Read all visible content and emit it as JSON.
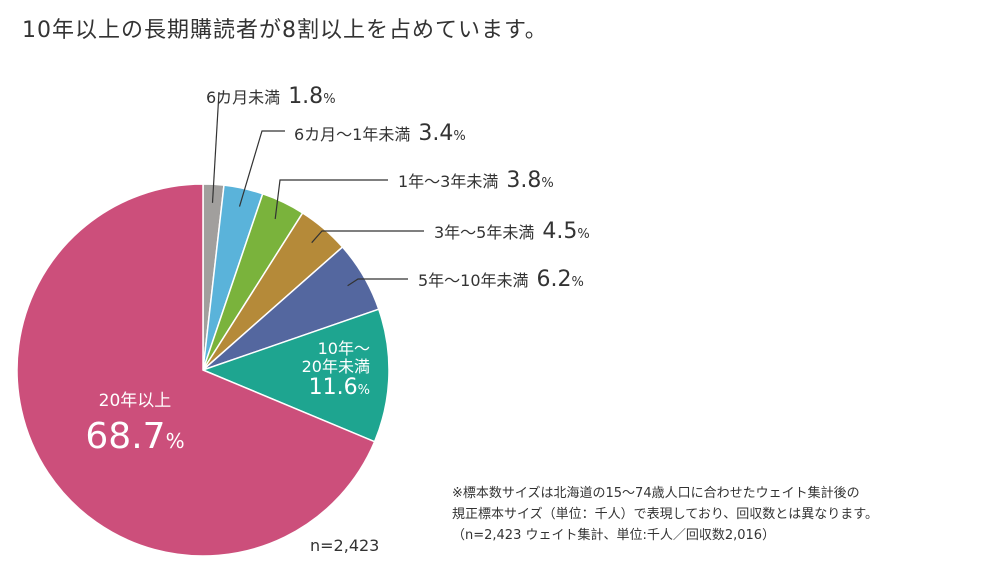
{
  "title": "10年以上の長期購読者が8割以上を占めています。",
  "chart_data": {
    "type": "pie",
    "start_angle_deg": 0,
    "direction": "clockwise",
    "unit": "%",
    "slices": [
      {
        "label": "6カ月未満",
        "value": 1.8,
        "value_text": "1.8",
        "color": "#a19f9d"
      },
      {
        "label": "6カ月〜1年未満",
        "value": 3.4,
        "value_text": "3.4",
        "color": "#5ab3da"
      },
      {
        "label": "1年〜3年未満",
        "value": 3.8,
        "value_text": "3.8",
        "color": "#7ab33c"
      },
      {
        "label": "3年〜5年未満",
        "value": 4.5,
        "value_text": "4.5",
        "color": "#b58a39"
      },
      {
        "label": "5年〜10年未満",
        "value": 6.2,
        "value_text": "6.2",
        "color": "#54679f"
      },
      {
        "label_lines": [
          "10年〜",
          "20年未満"
        ],
        "value": 11.6,
        "value_text": "11.6",
        "color": "#1ea590"
      },
      {
        "label": "20年以上",
        "value": 68.7,
        "value_text": "68.7",
        "color": "#cc4f7b"
      }
    ]
  },
  "n_label": "n=2,423",
  "footnote": {
    "lines": [
      "※標本数サイズは北海道の15〜74歳人口に合わせたウェイト集計後の",
      "規正標本サイズ（単位：千人）で表現しており、回収数とは異なります。",
      "（n=2,423 ウェイト集計、単位:千人／回収数2,016）"
    ]
  }
}
